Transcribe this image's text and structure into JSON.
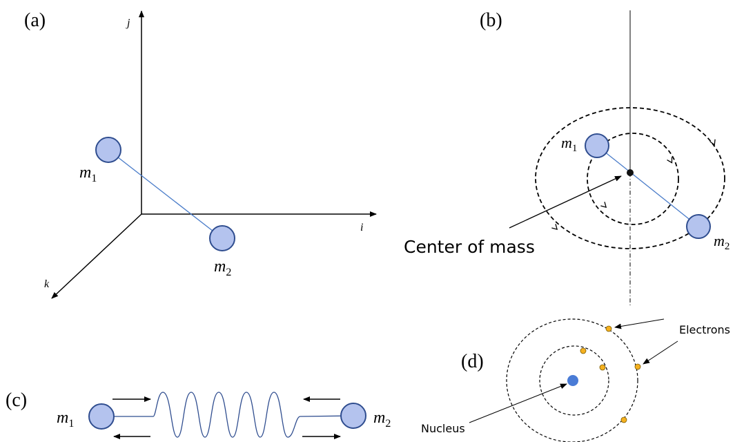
{
  "panels": {
    "a": {
      "label": "(a)",
      "axes": {
        "i": "i",
        "j": "j",
        "k": "k"
      },
      "masses": [
        {
          "symbol": "m",
          "subscript": "1"
        },
        {
          "symbol": "m",
          "subscript": "2"
        }
      ]
    },
    "b": {
      "label": "(b)",
      "masses": [
        {
          "symbol": "m",
          "subscript": "1"
        },
        {
          "symbol": "m",
          "subscript": "2"
        }
      ],
      "annotation": "Center of mass"
    },
    "c": {
      "label": "(c)",
      "masses": [
        {
          "symbol": "m",
          "subscript": "1"
        },
        {
          "symbol": "m",
          "subscript": "2"
        }
      ]
    },
    "d": {
      "label": "(d)",
      "annotations": {
        "electrons": "Electrons",
        "nucleus": "Nucleus"
      }
    }
  }
}
